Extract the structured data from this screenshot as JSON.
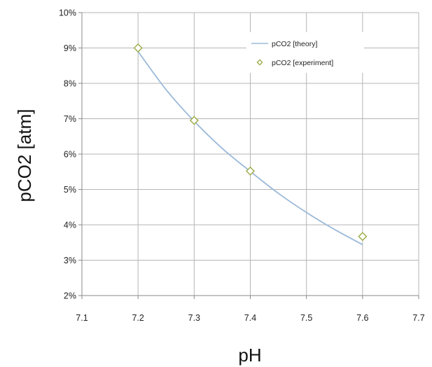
{
  "chart_data": {
    "type": "scatter",
    "xlabel": "pH",
    "ylabel": "pCO2 [atm]",
    "xlim": [
      7.1,
      7.7
    ],
    "ylim": [
      0.02,
      0.1
    ],
    "x_ticks": [
      7.1,
      7.2,
      7.3,
      7.4,
      7.5,
      7.6,
      7.7
    ],
    "x_tick_labels": [
      "7.1",
      "7.2",
      "7.3",
      "7.4",
      "7.5",
      "7.6",
      "7.7"
    ],
    "y_ticks": [
      0.02,
      0.03,
      0.04,
      0.05,
      0.06,
      0.07,
      0.08,
      0.09,
      0.1
    ],
    "y_tick_labels": [
      "2%",
      "3%",
      "4%",
      "5%",
      "6%",
      "7%",
      "8%",
      "9%",
      "10%"
    ],
    "grid": true,
    "legend_position": "top-right",
    "series": [
      {
        "name": "pCO2 [theory]",
        "style": "line",
        "color": "#9bb9d9",
        "x": [
          7.2,
          7.25,
          7.3,
          7.35,
          7.4,
          7.45,
          7.5,
          7.55,
          7.6
        ],
        "y": [
          0.089,
          0.0782,
          0.0693,
          0.0616,
          0.0551,
          0.0489,
          0.0435,
          0.0387,
          0.0344
        ]
      },
      {
        "name": "pCO2 [experiment]",
        "style": "marker",
        "marker": "diamond",
        "color": "#9aab45",
        "x": [
          7.2,
          7.3,
          7.4,
          7.6
        ],
        "y": [
          0.09,
          0.0695,
          0.0552,
          0.0367
        ]
      }
    ]
  }
}
